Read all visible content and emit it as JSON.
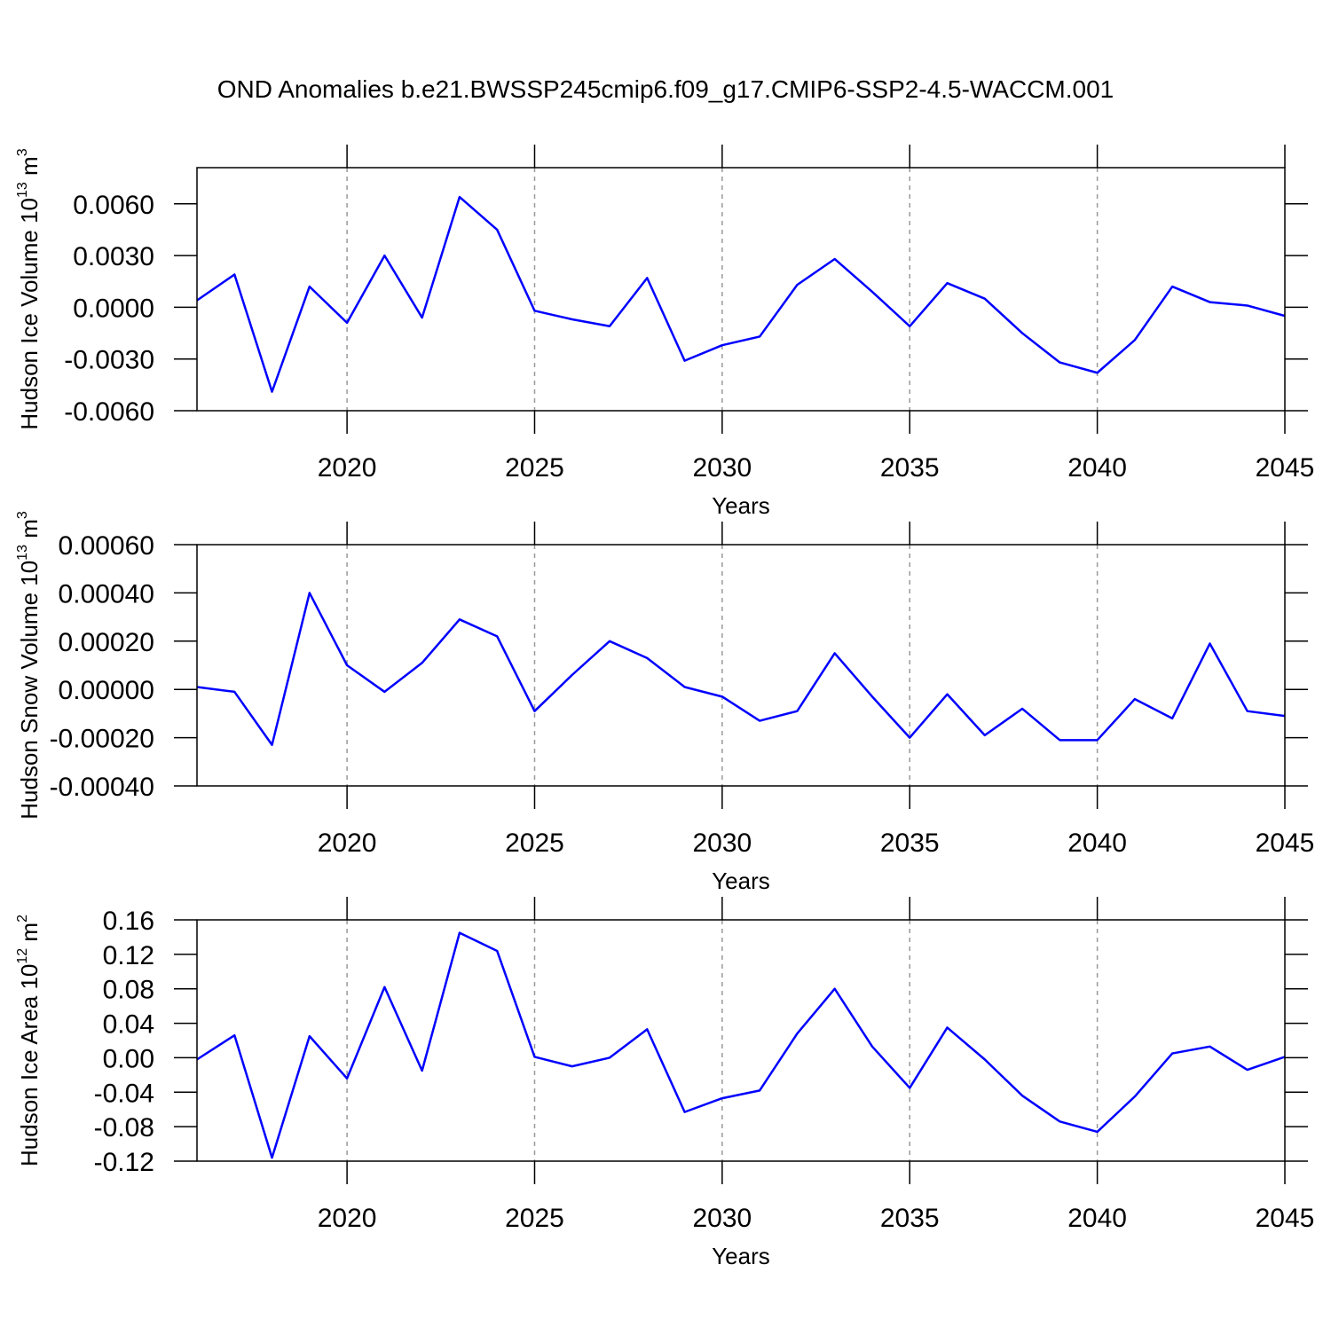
{
  "chart_data": [
    {
      "type": "line",
      "title": "OND Anomalies b.e21.BWSSP245cmip6.f09_g17.CMIP6-SSP2-4.5-WACCM.001",
      "xlabel": "Years",
      "ylabel": {
        "text": "Hudson Ice Volume 10",
        "exp": "13",
        "unit": " m",
        "unit_exp": "3"
      },
      "x": [
        2016,
        2017,
        2018,
        2019,
        2020,
        2021,
        2022,
        2023,
        2024,
        2025,
        2026,
        2027,
        2028,
        2029,
        2030,
        2031,
        2032,
        2033,
        2034,
        2035,
        2036,
        2037,
        2038,
        2039,
        2040,
        2041,
        2042,
        2043,
        2044,
        2045
      ],
      "series": [
        {
          "color": "#0000ff",
          "values": [
            0.0004,
            0.0019,
            -0.0049,
            0.0012,
            -0.0009,
            0.003,
            -0.0006,
            0.0064,
            0.0045,
            -0.0002,
            -0.0007,
            -0.0011,
            0.0017,
            -0.0031,
            -0.0022,
            -0.0017,
            0.0013,
            0.0028,
            0.0009,
            -0.0011,
            0.0014,
            0.0005,
            -0.0015,
            -0.0032,
            -0.0038,
            -0.0019,
            0.0012,
            0.0003,
            0.0001,
            -0.0005
          ]
        }
      ],
      "xlim": [
        2016,
        2045
      ],
      "xticks": [
        2020,
        2025,
        2030,
        2035,
        2040,
        2045
      ],
      "ylim": [
        -0.006,
        0.0081
      ],
      "yticks": [
        {
          "value": -0.006,
          "label": "-0.0060"
        },
        {
          "value": -0.003,
          "label": "-0.0030"
        },
        {
          "value": 0,
          "label": "0.0000"
        },
        {
          "value": 0.003,
          "label": "0.0030"
        },
        {
          "value": 0.006,
          "label": "0.0060"
        }
      ],
      "grid": true
    },
    {
      "type": "line",
      "xlabel": "Years",
      "ylabel": {
        "text": "Hudson Snow Volume 10",
        "exp": "13",
        "unit": " m",
        "unit_exp": "3"
      },
      "x": [
        2016,
        2017,
        2018,
        2019,
        2020,
        2021,
        2022,
        2023,
        2024,
        2025,
        2026,
        2027,
        2028,
        2029,
        2030,
        2031,
        2032,
        2033,
        2034,
        2035,
        2036,
        2037,
        2038,
        2039,
        2040,
        2041,
        2042,
        2043,
        2044,
        2045
      ],
      "series": [
        {
          "color": "#0000ff",
          "values": [
            1e-05,
            -1e-05,
            -0.00023,
            0.0004,
            0.0001,
            -1e-05,
            0.00011,
            0.00029,
            0.00022,
            -9e-05,
            6e-05,
            0.0002,
            0.00013,
            1e-05,
            -3e-05,
            -0.00013,
            -9e-05,
            0.00015,
            -3e-05,
            -0.0002,
            -2e-05,
            -0.00019,
            -8e-05,
            -0.00021,
            -0.00021,
            -4e-05,
            -0.00012,
            0.00019,
            -9e-05,
            -0.00011
          ]
        }
      ],
      "xlim": [
        2016,
        2045
      ],
      "xticks": [
        2020,
        2025,
        2030,
        2035,
        2040,
        2045
      ],
      "ylim": [
        -0.0004,
        0.0006
      ],
      "yticks": [
        {
          "value": -0.0004,
          "label": "-0.00040"
        },
        {
          "value": -0.0002,
          "label": "-0.00020"
        },
        {
          "value": 0,
          "label": "0.00000"
        },
        {
          "value": 0.0002,
          "label": "0.00020"
        },
        {
          "value": 0.0004,
          "label": "0.00040"
        },
        {
          "value": 0.0006,
          "label": "0.00060"
        }
      ],
      "grid": true
    },
    {
      "type": "line",
      "xlabel": "Years",
      "ylabel": {
        "text": "Hudson Ice Area 10",
        "exp": "12",
        "unit": " m",
        "unit_exp": "2"
      },
      "x": [
        2016,
        2017,
        2018,
        2019,
        2020,
        2021,
        2022,
        2023,
        2024,
        2025,
        2026,
        2027,
        2028,
        2029,
        2030,
        2031,
        2032,
        2033,
        2034,
        2035,
        2036,
        2037,
        2038,
        2039,
        2040,
        2041,
        2042,
        2043,
        2044,
        2045
      ],
      "series": [
        {
          "color": "#0000ff",
          "values": [
            -0.002,
            0.026,
            -0.116,
            0.025,
            -0.024,
            0.082,
            -0.015,
            0.145,
            0.124,
            0.001,
            -0.01,
            0,
            0.033,
            -0.063,
            -0.047,
            -0.038,
            0.028,
            0.08,
            0.013,
            -0.035,
            0.035,
            -0.002,
            -0.044,
            -0.074,
            -0.086,
            -0.045,
            0.005,
            0.013,
            -0.014,
            0.001
          ]
        }
      ],
      "xlim": [
        2016,
        2045
      ],
      "xticks": [
        2020,
        2025,
        2030,
        2035,
        2040,
        2045
      ],
      "ylim": [
        -0.12,
        0.16
      ],
      "yticks": [
        {
          "value": -0.12,
          "label": "-0.12"
        },
        {
          "value": -0.08,
          "label": "-0.08"
        },
        {
          "value": -0.04,
          "label": "-0.04"
        },
        {
          "value": 0,
          "label": "0.00"
        },
        {
          "value": 0.04,
          "label": "0.04"
        },
        {
          "value": 0.08,
          "label": "0.08"
        },
        {
          "value": 0.12,
          "label": "0.12"
        },
        {
          "value": 0.16,
          "label": "0.16"
        }
      ],
      "grid": true
    }
  ]
}
